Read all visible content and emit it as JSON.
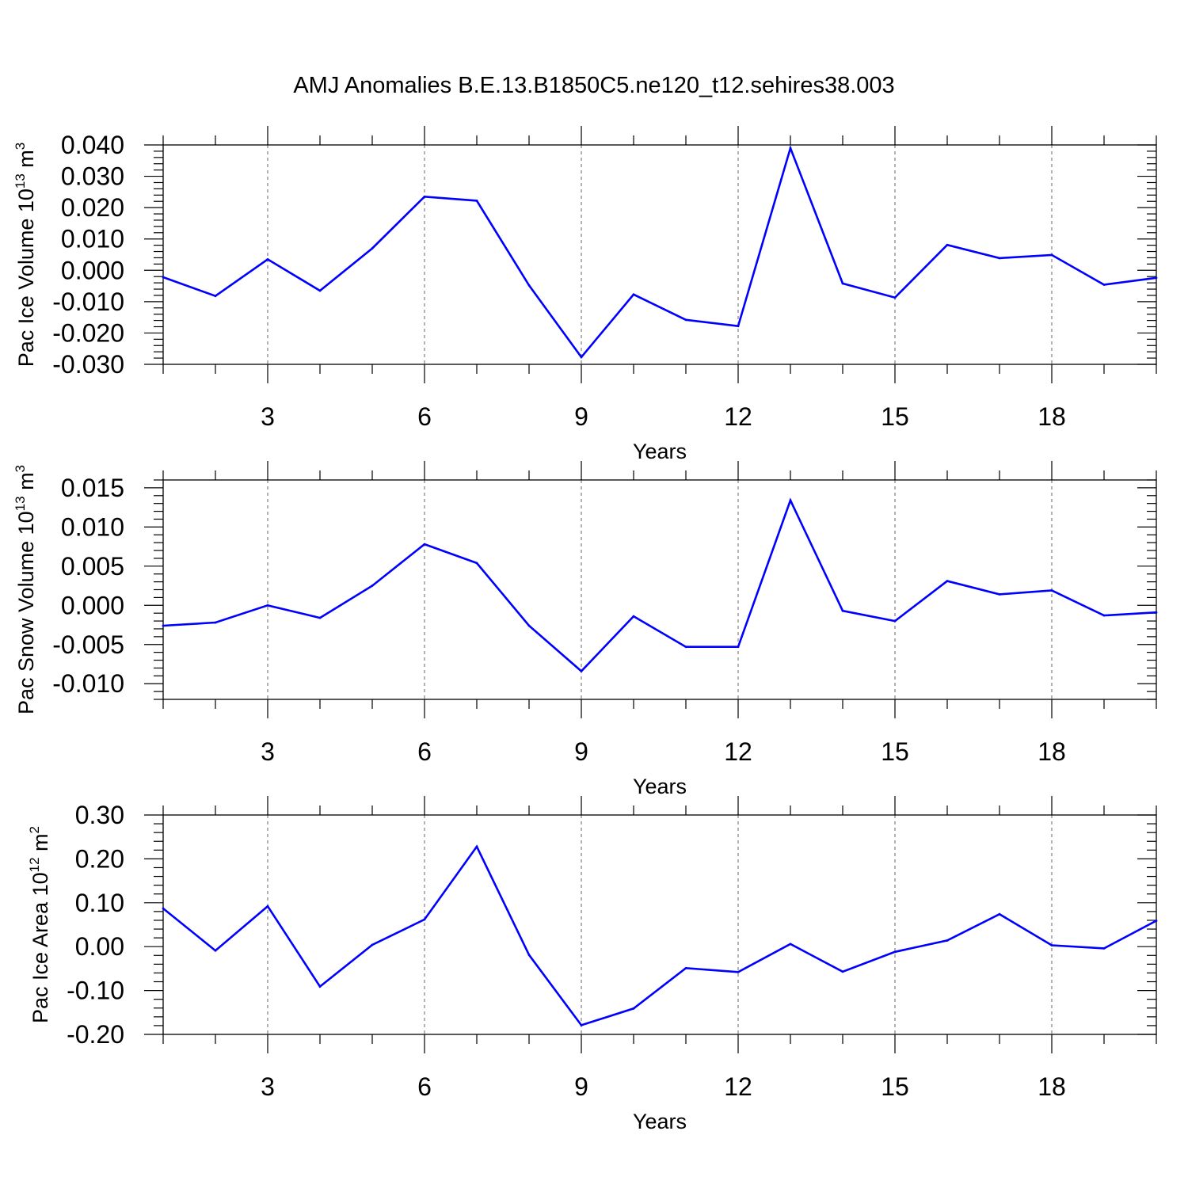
{
  "title": "AMJ Anomalies B.E.13.B1850C5.ne120_t12.sehires38.003",
  "colors": {
    "line": "#0000ff",
    "axis": "#000000",
    "grid": "#808080"
  },
  "chart_data": [
    {
      "type": "line",
      "ylabel": "Pac Ice Volume 10",
      "ylabel_sup": "13",
      "ylabel_unit": " m",
      "ylabel_unit_sup": "3",
      "xlabel": "Years",
      "xlim": [
        1,
        20
      ],
      "ylim": [
        -0.03,
        0.04
      ],
      "x_ticks": [
        3,
        6,
        9,
        12,
        15,
        18
      ],
      "x_tick_labels": [
        "3",
        "6",
        "9",
        "12",
        "15",
        "18"
      ],
      "y_ticks": [
        0.04,
        0.03,
        0.02,
        0.01,
        0.0,
        -0.01,
        -0.02,
        -0.03
      ],
      "y_tick_labels": [
        "0.040",
        "0.030",
        "0.020",
        "0.010",
        "0.000",
        "-0.010",
        "-0.020",
        "-0.030"
      ],
      "grid": "vertical dashed at major x ticks",
      "x": [
        1,
        2,
        3,
        4,
        5,
        6,
        7,
        8,
        9,
        10,
        11,
        12,
        13,
        14,
        15,
        16,
        17,
        18,
        19,
        20
      ],
      "values": [
        -0.0022,
        -0.0082,
        0.0035,
        -0.0065,
        0.007,
        0.0235,
        0.0222,
        -0.0048,
        -0.0277,
        -0.0077,
        -0.0158,
        -0.0178,
        0.039,
        -0.0042,
        -0.0087,
        0.0081,
        0.0039,
        0.0049,
        -0.0046,
        -0.0024
      ]
    },
    {
      "type": "line",
      "ylabel": "Pac Snow Volume 10",
      "ylabel_sup": "13",
      "ylabel_unit": " m",
      "ylabel_unit_sup": "3",
      "xlabel": "Years",
      "xlim": [
        1,
        20
      ],
      "ylim": [
        -0.012,
        0.016
      ],
      "x_ticks": [
        3,
        6,
        9,
        12,
        15,
        18
      ],
      "x_tick_labels": [
        "3",
        "6",
        "9",
        "12",
        "15",
        "18"
      ],
      "y_ticks": [
        0.015,
        0.01,
        0.005,
        0.0,
        -0.005,
        -0.01
      ],
      "y_tick_labels": [
        "0.015",
        "0.010",
        "0.005",
        "0.000",
        "-0.005",
        "-0.010"
      ],
      "grid": "vertical dashed at major x ticks",
      "x": [
        1,
        2,
        3,
        4,
        5,
        6,
        7,
        8,
        9,
        10,
        11,
        12,
        13,
        14,
        15,
        16,
        17,
        18,
        19,
        20
      ],
      "values": [
        -0.0026,
        -0.0022,
        0.0,
        -0.0016,
        0.0025,
        0.0078,
        0.0054,
        -0.0026,
        -0.0084,
        -0.0014,
        -0.0053,
        -0.0053,
        0.0134,
        -0.0007,
        -0.002,
        0.0031,
        0.0014,
        0.0019,
        -0.0013,
        -0.0009
      ]
    },
    {
      "type": "line",
      "ylabel": "Pac Ice Area 10",
      "ylabel_sup": "12",
      "ylabel_unit": " m",
      "ylabel_unit_sup": "2",
      "xlabel": "Years",
      "xlim": [
        1,
        20
      ],
      "ylim": [
        -0.2,
        0.3
      ],
      "x_ticks": [
        3,
        6,
        9,
        12,
        15,
        18
      ],
      "x_tick_labels": [
        "3",
        "6",
        "9",
        "12",
        "15",
        "18"
      ],
      "y_ticks": [
        0.3,
        0.2,
        0.1,
        0.0,
        -0.1,
        -0.2
      ],
      "y_tick_labels": [
        "0.30",
        "0.20",
        "0.10",
        "0.00",
        "-0.10",
        "-0.20"
      ],
      "grid": "vertical dashed at major x ticks",
      "x": [
        1,
        2,
        3,
        4,
        5,
        6,
        7,
        8,
        9,
        10,
        11,
        12,
        13,
        14,
        15,
        16,
        17,
        18,
        19,
        20
      ],
      "values": [
        0.087,
        -0.009,
        0.092,
        -0.091,
        0.004,
        0.062,
        0.228,
        -0.019,
        -0.179,
        -0.141,
        -0.049,
        -0.058,
        0.006,
        -0.057,
        -0.012,
        0.014,
        0.074,
        0.003,
        -0.004,
        0.059
      ]
    }
  ]
}
